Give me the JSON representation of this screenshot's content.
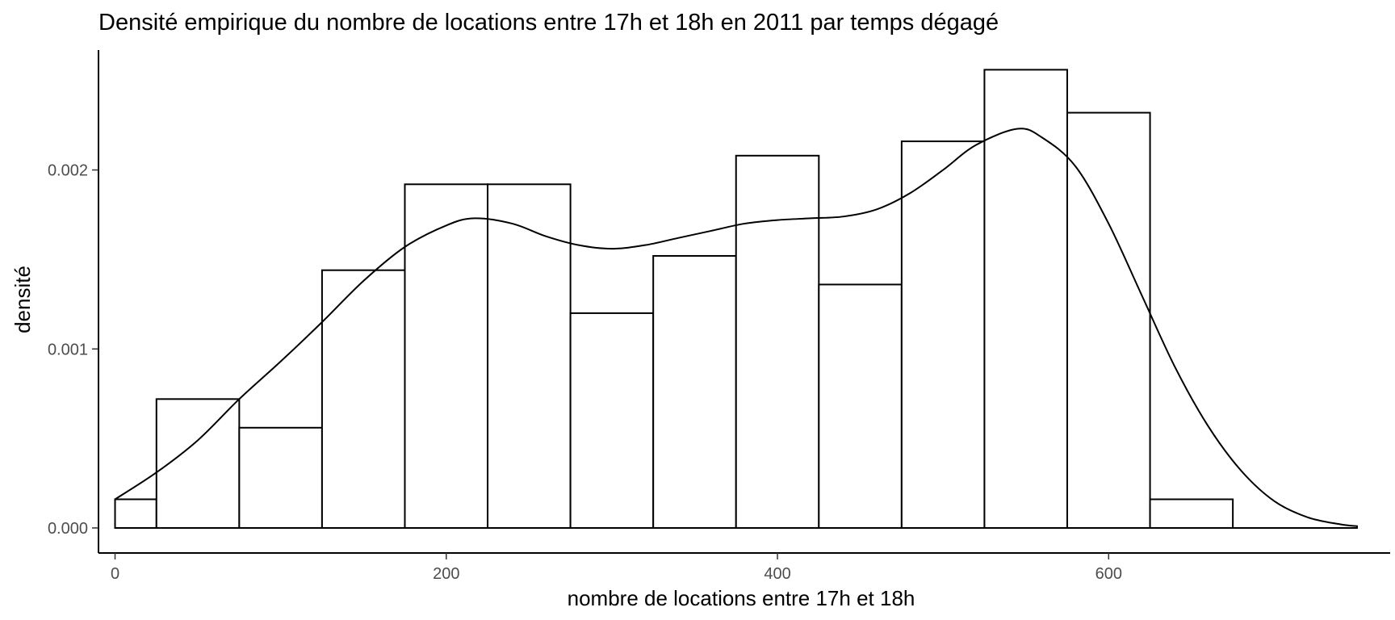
{
  "chart_data": {
    "type": "bar",
    "subtype": "histogram-with-density",
    "title": "Densité empirique du nombre de locations entre 17h et 18h en 2011 par temps dégagé",
    "xlabel": "nombre de locations entre 17h et 18h",
    "ylabel": "densité",
    "xlim": [
      -10,
      770
    ],
    "ylim": [
      -0.00014,
      0.00267
    ],
    "x_ticks": [
      0,
      200,
      400,
      600
    ],
    "x_tick_labels": [
      "0",
      "200",
      "400",
      "600"
    ],
    "y_ticks": [
      0.0,
      0.001,
      0.002
    ],
    "y_tick_labels": [
      "0.000",
      "0.001",
      "0.002"
    ],
    "grid": false,
    "bin_width": 50,
    "bins": [
      {
        "x0": -25,
        "x1": 25,
        "density": 0.00016
      },
      {
        "x0": 25,
        "x1": 75,
        "density": 0.00072
      },
      {
        "x0": 75,
        "x1": 125,
        "density": 0.00056
      },
      {
        "x0": 125,
        "x1": 175,
        "density": 0.00144
      },
      {
        "x0": 175,
        "x1": 225,
        "density": 0.00192
      },
      {
        "x0": 225,
        "x1": 275,
        "density": 0.00192
      },
      {
        "x0": 275,
        "x1": 325,
        "density": 0.0012
      },
      {
        "x0": 325,
        "x1": 375,
        "density": 0.00152
      },
      {
        "x0": 375,
        "x1": 425,
        "density": 0.00208
      },
      {
        "x0": 425,
        "x1": 475,
        "density": 0.00136
      },
      {
        "x0": 475,
        "x1": 525,
        "density": 0.00216
      },
      {
        "x0": 525,
        "x1": 575,
        "density": 0.00256
      },
      {
        "x0": 575,
        "x1": 625,
        "density": 0.00232
      },
      {
        "x0": 625,
        "x1": 675,
        "density": 0.00016
      }
    ],
    "density_curve": {
      "x": [
        0,
        25,
        50,
        75,
        100,
        125,
        150,
        175,
        200,
        217,
        240,
        260,
        280,
        300,
        320,
        340,
        360,
        380,
        400,
        420,
        440,
        460,
        480,
        500,
        520,
        545,
        560,
        580,
        600,
        620,
        640,
        660,
        680,
        700,
        720,
        740,
        750
      ],
      "y": [
        0.00016,
        0.00031,
        0.00049,
        0.00072,
        0.00093,
        0.00115,
        0.00138,
        0.00157,
        0.00169,
        0.00173,
        0.0017,
        0.00163,
        0.00158,
        0.00156,
        0.00158,
        0.00162,
        0.00166,
        0.0017,
        0.00172,
        0.00173,
        0.00174,
        0.00178,
        0.00187,
        0.002,
        0.00214,
        0.00223,
        0.00218,
        0.00202,
        0.0017,
        0.0013,
        0.0009,
        0.00057,
        0.00032,
        0.00015,
        6e-05,
        2e-05,
        1e-05
      ]
    }
  }
}
